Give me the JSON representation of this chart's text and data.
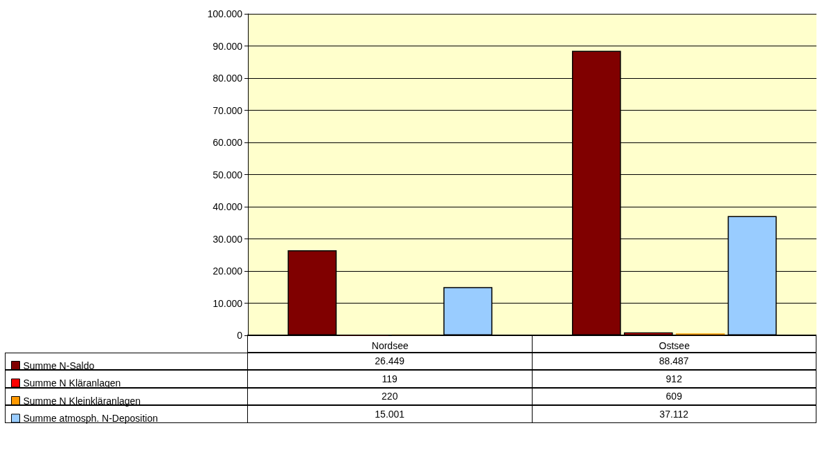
{
  "chart_data": {
    "type": "bar",
    "categories": [
      "Nordsee",
      "Ostsee"
    ],
    "series": [
      {
        "name": "Summe N-Saldo",
        "color": "#800000",
        "values": [
          26449,
          88487
        ],
        "value_labels": [
          "26.449",
          "88.487"
        ]
      },
      {
        "name": "Summe N Kläranlagen",
        "color": "#ff0000",
        "values": [
          119,
          912
        ],
        "value_labels": [
          "119",
          "912"
        ]
      },
      {
        "name": "Summe N Kleinkläranlagen",
        "color": "#ff9900",
        "values": [
          220,
          609
        ],
        "value_labels": [
          "220",
          "609"
        ]
      },
      {
        "name": "Summe atmosph. N-Deposition",
        "color": "#99ccff",
        "values": [
          15001,
          37112
        ],
        "value_labels": [
          "15.001",
          "37.112"
        ]
      }
    ],
    "ylim": [
      0,
      100000
    ],
    "yticks": [
      {
        "value": 0,
        "label": "0"
      },
      {
        "value": 10000,
        "label": "10.000"
      },
      {
        "value": 20000,
        "label": "20.000"
      },
      {
        "value": 30000,
        "label": "30.000"
      },
      {
        "value": 40000,
        "label": "40.000"
      },
      {
        "value": 50000,
        "label": "50.000"
      },
      {
        "value": 60000,
        "label": "60.000"
      },
      {
        "value": 70000,
        "label": "70.000"
      },
      {
        "value": 80000,
        "label": "80.000"
      },
      {
        "value": 90000,
        "label": "90.000"
      },
      {
        "value": 100000,
        "label": "100.000"
      }
    ],
    "grid": "y",
    "legend": "bottom left"
  }
}
